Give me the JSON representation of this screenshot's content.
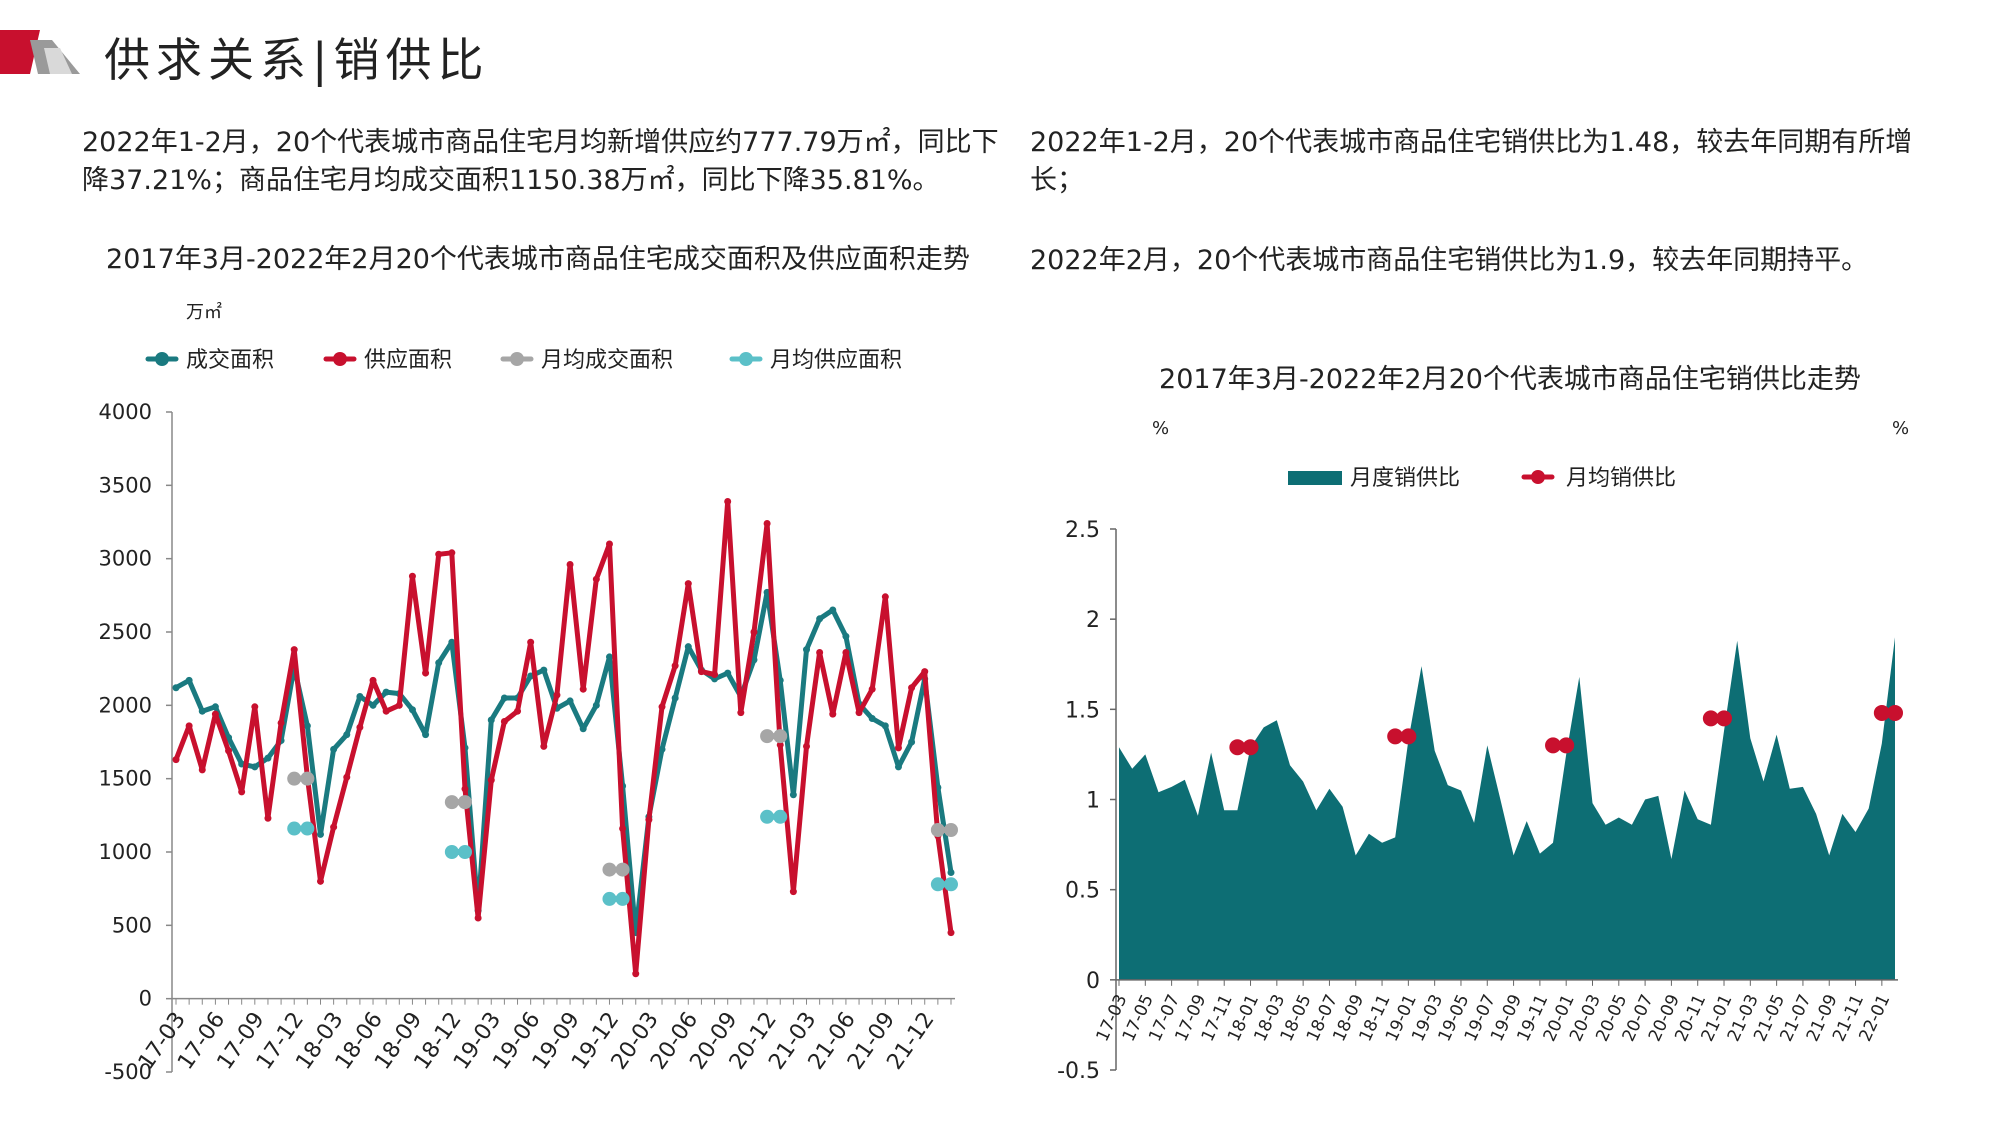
{
  "page": {
    "title": "供求关系|销供比",
    "left_text": "2022年1-2月，20个代表城市商品住宅月均新增供应约777.79万㎡，同比下降37.21%；商品住宅月均成交面积1150.38万㎡，同比下降35.81%。",
    "right_text_1": "2022年1-2月，20个代表城市商品住宅销供比为1.48，较去年同期有所增长；",
    "right_text_2": "2022年2月，20个代表城市商品住宅销供比为1.9，较去年同期持平。",
    "brand_colors": {
      "red": "#c8102e",
      "grey": "#9a9a9a"
    }
  },
  "chart_data": [
    {
      "type": "line",
      "title": "2017年3月-2022年2月20个代表城市商品住宅成交面积及供应面积走势",
      "unit": "万㎡",
      "ylim": [
        -500,
        4000
      ],
      "yticks": [
        "-500",
        "0",
        "500",
        "1000",
        "1500",
        "2000",
        "2500",
        "3000",
        "3500",
        "4000"
      ],
      "xticks": [
        "17-03",
        "17-06",
        "17-09",
        "17-12",
        "18-03",
        "18-06",
        "18-09",
        "18-12",
        "19-03",
        "19-06",
        "19-09",
        "19-12",
        "20-03",
        "20-06",
        "20-09",
        "20-12",
        "21-03",
        "21-06",
        "21-09",
        "21-12"
      ],
      "series": [
        {
          "name": "成交面积",
          "color": "#1a7a80",
          "values": [
            2120,
            2170,
            1960,
            1990,
            1780,
            1600,
            1580,
            1640,
            1760,
            2260,
            1860,
            1120,
            1700,
            1800,
            2060,
            2000,
            2090,
            2080,
            1970,
            1800,
            2290,
            2430,
            1710,
            600,
            1900,
            2050,
            2050,
            2200,
            2240,
            1980,
            2030,
            1840,
            2000,
            2330,
            1450,
            450,
            1240,
            1700,
            2050,
            2400,
            2240,
            2180,
            2220,
            2060,
            2310,
            2770,
            2170,
            1390,
            2380,
            2590,
            2650,
            2470,
            2010,
            1910,
            1860,
            1580,
            1750,
            2180,
            1440,
            860
          ]
        },
        {
          "name": "供应面积",
          "color": "#c8102e",
          "values": [
            1630,
            1860,
            1560,
            1940,
            1690,
            1410,
            1990,
            1230,
            1880,
            2380,
            1510,
            800,
            1170,
            1510,
            1850,
            2170,
            1960,
            2000,
            2880,
            2220,
            3030,
            3040,
            1430,
            550,
            1490,
            1890,
            1960,
            2430,
            1720,
            2070,
            2960,
            2110,
            2860,
            3100,
            1160,
            170,
            1220,
            1990,
            2270,
            2830,
            2230,
            2210,
            3390,
            1950,
            2500,
            3240,
            1730,
            730,
            1720,
            2360,
            1940,
            2360,
            1950,
            2110,
            2740,
            1710,
            2120,
            2230,
            1110,
            450
          ]
        },
        {
          "name": "月均成交面积",
          "color": "#a6a6a6",
          "segments": [
            {
              "from": 9,
              "to": 10,
              "value": 1500
            },
            {
              "from": 21,
              "to": 22,
              "value": 1340
            },
            {
              "from": 33,
              "to": 34,
              "value": 880
            },
            {
              "from": 45,
              "to": 46,
              "value": 1790
            },
            {
              "from": 58,
              "to": 59,
              "value": 1150
            }
          ]
        },
        {
          "name": "月均供应面积",
          "color": "#5bc0c8",
          "segments": [
            {
              "from": 9,
              "to": 10,
              "value": 1160
            },
            {
              "from": 21,
              "to": 22,
              "value": 1000
            },
            {
              "from": 33,
              "to": 34,
              "value": 680
            },
            {
              "from": 45,
              "to": 46,
              "value": 1240
            },
            {
              "from": 58,
              "to": 59,
              "value": 780
            }
          ]
        }
      ]
    },
    {
      "type": "area",
      "title": "2017年3月-2022年2月20个代表城市商品住宅销供比走势",
      "unit_left": "%",
      "unit_right": "%",
      "ylim": [
        -0.5,
        2.5
      ],
      "yticks": [
        "-0.5",
        "0",
        "0.5",
        "1",
        "1.5",
        "2",
        "2.5"
      ],
      "xticks": [
        "17-03",
        "17-05",
        "17-07",
        "17-09",
        "17-11",
        "18-01",
        "18-03",
        "18-05",
        "18-07",
        "18-09",
        "18-11",
        "19-01",
        "19-03",
        "19-05",
        "19-07",
        "19-09",
        "19-11",
        "20-01",
        "20-03",
        "20-05",
        "20-07",
        "20-09",
        "20-11",
        "21-01",
        "21-03",
        "21-05",
        "21-07",
        "21-09",
        "21-11",
        "22-01"
      ],
      "series": [
        {
          "name": "月度销供比",
          "color": "#0d6e74",
          "values": [
            1.29,
            1.17,
            1.25,
            1.04,
            1.07,
            1.11,
            0.91,
            1.26,
            0.94,
            0.94,
            1.29,
            1.4,
            1.44,
            1.19,
            1.1,
            0.94,
            1.06,
            0.96,
            0.69,
            0.81,
            0.76,
            0.79,
            1.33,
            1.74,
            1.27,
            1.08,
            1.05,
            0.87,
            1.3,
            1.0,
            0.69,
            0.88,
            0.7,
            0.76,
            1.25,
            1.68,
            0.98,
            0.86,
            0.9,
            0.86,
            1.0,
            1.02,
            0.67,
            1.05,
            0.89,
            0.86,
            1.38,
            1.88,
            1.34,
            1.1,
            1.36,
            1.06,
            1.07,
            0.92,
            0.69,
            0.92,
            0.82,
            0.95,
            1.31,
            1.9
          ]
        },
        {
          "name": "月均销供比",
          "color": "#c8102e",
          "segments": [
            {
              "from": 9,
              "to": 10,
              "value": 1.29
            },
            {
              "from": 21,
              "to": 22,
              "value": 1.35
            },
            {
              "from": 33,
              "to": 34,
              "value": 1.3
            },
            {
              "from": 45,
              "to": 46,
              "value": 1.45
            },
            {
              "from": 58,
              "to": 59,
              "value": 1.48
            }
          ]
        }
      ]
    }
  ]
}
